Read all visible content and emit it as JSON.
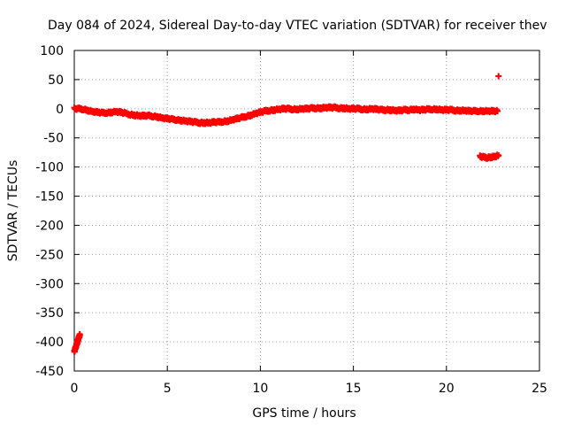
{
  "chart_data": {
    "type": "scatter",
    "title": "Day 084 of 2024, Sidereal Day-to-day VTEC variation (SDTVAR) for receiver thev",
    "xlabel": "GPS time / hours",
    "ylabel": "SDTVAR / TECUs",
    "xlim": [
      0,
      25
    ],
    "ylim": [
      -450,
      100
    ],
    "xticks": [
      0,
      5,
      10,
      15,
      20,
      25
    ],
    "yticks": [
      100,
      50,
      0,
      -50,
      -100,
      -150,
      -200,
      -250,
      -300,
      -350,
      -400,
      -450
    ],
    "grid": true,
    "marker": "+",
    "color": "#ff0000",
    "series": [
      {
        "name": "main",
        "x": [
          0,
          0.25,
          0.5,
          0.75,
          1.0,
          1.25,
          1.5,
          1.75,
          2.0,
          2.25,
          2.5,
          2.75,
          3.0,
          3.25,
          3.5,
          3.75,
          4.0,
          4.25,
          4.5,
          4.75,
          5.0,
          5.25,
          5.5,
          5.75,
          6.0,
          6.25,
          6.5,
          6.75,
          7.0,
          7.25,
          7.5,
          7.75,
          8.0,
          8.25,
          8.5,
          8.75,
          9.0,
          9.25,
          9.5,
          9.75,
          10.0,
          10.25,
          10.5,
          10.75,
          11.0,
          11.25,
          11.5,
          11.75,
          12.0,
          12.25,
          12.5,
          12.75,
          13.0,
          13.25,
          13.5,
          13.75,
          14.0,
          14.25,
          14.5,
          14.75,
          15.0,
          15.25,
          15.5,
          15.75,
          16.0,
          16.25,
          16.5,
          16.75,
          17.0,
          17.25,
          17.5,
          17.75,
          18.0,
          18.25,
          18.5,
          18.75,
          19.0,
          19.25,
          19.5,
          19.75,
          20.0,
          20.25,
          20.5,
          20.75,
          21.0,
          21.25,
          21.5,
          21.75,
          22.0,
          22.25,
          22.5,
          22.75
        ],
        "y": [
          0,
          0,
          -1,
          -3,
          -5,
          -6,
          -7,
          -7,
          -6,
          -5,
          -6,
          -8,
          -10,
          -11,
          -12,
          -12,
          -12,
          -13,
          -14,
          -16,
          -17,
          -18,
          -19,
          -20,
          -21,
          -22,
          -23,
          -24,
          -24,
          -24,
          -23,
          -23,
          -22,
          -21,
          -19,
          -17,
          -15,
          -13,
          -11,
          -8,
          -6,
          -4,
          -3,
          -2,
          -1,
          0,
          0,
          -1,
          -1,
          0,
          0,
          1,
          1,
          1,
          2,
          2,
          2,
          1,
          1,
          0,
          0,
          0,
          -1,
          -1,
          0,
          -1,
          -2,
          -2,
          -2,
          -3,
          -3,
          -2,
          -2,
          -1,
          -2,
          -2,
          -1,
          -1,
          -1,
          -2,
          -2,
          -2,
          -3,
          -3,
          -3,
          -4,
          -4,
          -4,
          -4,
          -4,
          -4,
          -4
        ]
      },
      {
        "name": "start_dip",
        "x": [
          0.0,
          0.05,
          0.1,
          0.15,
          0.2,
          0.25,
          0.3
        ],
        "y": [
          -417,
          -412,
          -407,
          -402,
          -397,
          -392,
          -388
        ]
      },
      {
        "name": "late_cluster",
        "x": [
          21.8,
          22.0,
          22.2,
          22.4,
          22.6,
          22.8
        ],
        "y": [
          -82,
          -83,
          -84,
          -83,
          -82,
          -80
        ]
      },
      {
        "name": "outlier",
        "x": [
          22.8
        ],
        "y": [
          56
        ]
      }
    ]
  }
}
